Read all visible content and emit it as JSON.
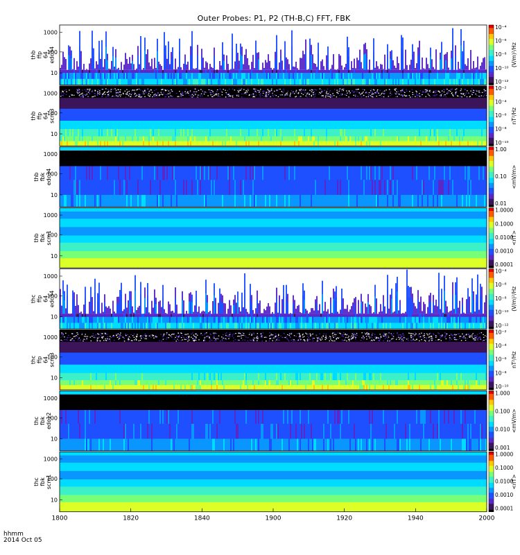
{
  "title": "Outer Probes: P1, P2 (TH-B,C) FFT, FBK",
  "footer": {
    "time_label": "hhmm",
    "date_label": "2014 Oct 05"
  },
  "x_axis": {
    "range": [
      1800,
      2000
    ],
    "tick_labels": [
      "1800",
      "1820",
      "1840",
      "1900",
      "1920",
      "1940",
      "2000"
    ]
  },
  "colors": {
    "scale": [
      "#000000",
      "#3c145a",
      "#5a28c8",
      "#1e50ff",
      "#0a96ff",
      "#00dcff",
      "#3cf0c8",
      "#78ff78",
      "#dcff28",
      "#ffc800",
      "#ff5a00",
      "#dc0000"
    ]
  },
  "chart_data": [
    {
      "type": "heatmap",
      "panel_label": [
        "thb",
        "ffp",
        "64",
        "edc34"
      ],
      "probe": "thb",
      "y_tick_labels": [
        "1000",
        "100",
        "10"
      ],
      "y_scale": "log",
      "colorbar": {
        "unit": "(V/m)²/Hz",
        "tick_labels": [
          "10⁻⁴",
          "10⁻⁶",
          "10⁻⁸",
          "10⁻¹⁰",
          "10⁻¹²"
        ]
      }
    },
    {
      "type": "heatmap",
      "panel_label": [
        "thb",
        "ffp",
        "64",
        "scm3"
      ],
      "probe": "thb",
      "y_tick_labels": [
        "1000",
        "100",
        "10"
      ],
      "y_scale": "log",
      "colorbar": {
        "unit": "nT²/Hz",
        "tick_labels": [
          "10⁻²",
          "10⁻⁴",
          "10⁻⁶",
          "10⁻⁸",
          "10⁻¹⁰"
        ]
      }
    },
    {
      "type": "heatmap",
      "panel_label": [
        "thb",
        "fbk",
        "edc34"
      ],
      "probe": "thb",
      "y_tick_labels": [
        "1000",
        "100",
        "10"
      ],
      "y_scale": "log",
      "colorbar": {
        "unit": "<mV/m>",
        "tick_labels": [
          "1.00",
          "0.10",
          "0.01"
        ]
      }
    },
    {
      "type": "heatmap",
      "panel_label": [
        "thb",
        "fbk",
        "scm1"
      ],
      "probe": "thb",
      "y_tick_labels": [
        "1000",
        "100",
        "10"
      ],
      "y_scale": "log",
      "colorbar": {
        "unit": "<nT>",
        "tick_labels": [
          "1.0000",
          "0.1000",
          "0.0100",
          "0.0010",
          "0.0001"
        ]
      }
    },
    {
      "type": "heatmap",
      "panel_label": [
        "thc",
        "ffp",
        "64",
        "edc34"
      ],
      "probe": "thc",
      "y_tick_labels": [
        "1000",
        "100",
        "10"
      ],
      "y_scale": "log",
      "colorbar": {
        "unit": "(V/m)²/Hz",
        "tick_labels": [
          "10⁻⁴",
          "10⁻⁶",
          "10⁻⁸",
          "10⁻¹⁰",
          "10⁻¹²"
        ]
      }
    },
    {
      "type": "heatmap",
      "panel_label": [
        "thc",
        "ffp",
        "64",
        "scm3"
      ],
      "probe": "thc",
      "y_tick_labels": [
        "1000",
        "100",
        "10"
      ],
      "y_scale": "log",
      "colorbar": {
        "unit": "nT²/Hz",
        "tick_labels": [
          "10⁻²",
          "10⁻⁴",
          "10⁻⁶",
          "10⁻⁸",
          "10⁻¹⁰"
        ]
      }
    },
    {
      "type": "heatmap",
      "panel_label": [
        "thc",
        "fbk",
        "edc12"
      ],
      "probe": "thc",
      "y_tick_labels": [
        "1000",
        "100",
        "10"
      ],
      "y_scale": "log",
      "colorbar": {
        "unit": "<mV/m>",
        "tick_labels": [
          "1.000",
          "0.100",
          "0.010",
          "0.001"
        ]
      }
    },
    {
      "type": "heatmap",
      "panel_label": [
        "thc",
        "fbk",
        "scm1"
      ],
      "probe": "thc",
      "y_tick_labels": [
        "1000",
        "100",
        "10"
      ],
      "y_scale": "log",
      "colorbar": {
        "unit": "<nT>",
        "tick_labels": [
          "1.0000",
          "0.1000",
          "0.0100",
          "0.0010",
          "0.0001"
        ]
      }
    }
  ]
}
